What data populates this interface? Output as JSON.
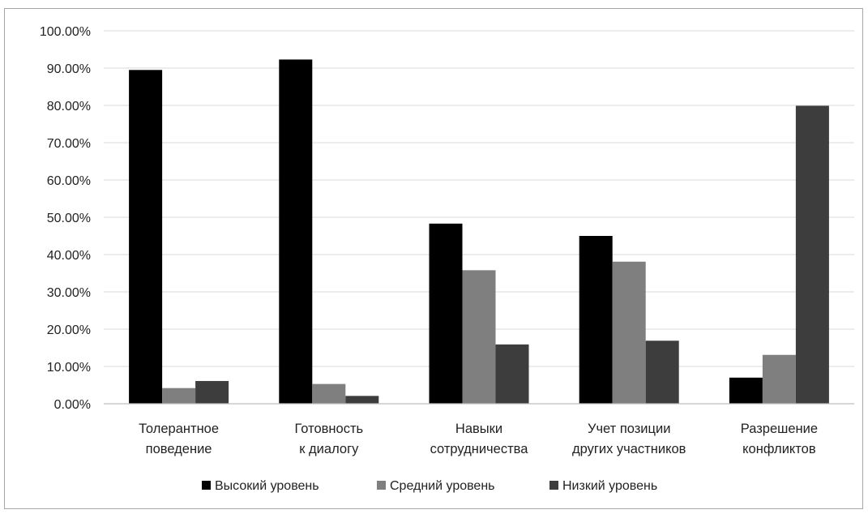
{
  "chart_data": {
    "type": "bar",
    "title": "",
    "xlabel": "",
    "ylabel": "",
    "ylim": [
      0,
      1.0
    ],
    "yticks": [
      "0.00%",
      "10.00%",
      "20.00%",
      "30.00%",
      "40.00%",
      "50.00%",
      "60.00%",
      "70.00%",
      "80.00%",
      "90.00%",
      "100.00%"
    ],
    "grid": true,
    "legend_position": "bottom",
    "categories": [
      [
        "Толерантное",
        "поведение"
      ],
      [
        "Готовность",
        "к диалогу"
      ],
      [
        "Навыки",
        "сотрудничества"
      ],
      [
        "Учет позиции",
        "других участников"
      ],
      [
        "Разрешение",
        "конфликтов"
      ]
    ],
    "series": [
      {
        "name": "Высокий уровень",
        "color": "#000000",
        "values": [
          0.895,
          0.923,
          0.483,
          0.45,
          0.07
        ]
      },
      {
        "name": "Средний уровень",
        "color": "#7f7f7f",
        "values": [
          0.042,
          0.053,
          0.358,
          0.381,
          0.131
        ]
      },
      {
        "name": "Низкий уровень",
        "color": "#3d3d3d",
        "values": [
          0.061,
          0.021,
          0.159,
          0.169,
          0.799
        ]
      }
    ]
  }
}
